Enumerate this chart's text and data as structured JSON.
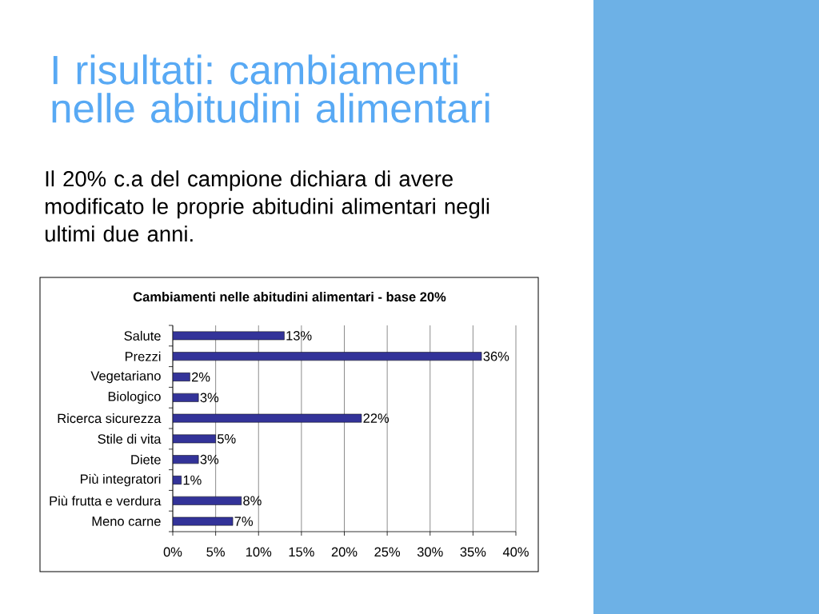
{
  "chart_data": {
    "type": "bar",
    "orientation": "horizontal",
    "title": "I risultati: cambiamenti nelle abitudini alimentari",
    "subtitle": "Il 20% c.a del campione dichiara di avere modificato le proprie abitudini alimentari negli ultimi due anni.",
    "annotations": [
      "Cambiamenti nelle abitudini alimentari - base 20%"
    ],
    "categories": [
      "Salute",
      "Prezzi",
      "Vegetariano",
      "Biologico",
      "Ricerca sicurezza",
      "Stile di vita",
      "Diete",
      "Più integratori",
      "Più frutta e verdura",
      "Meno carne"
    ],
    "values": [
      13,
      36,
      2,
      3,
      22,
      5,
      3,
      1,
      8,
      7
    ],
    "value_labels": [
      "13%",
      "36%",
      "2%",
      "3%",
      "22%",
      "5%",
      "3%",
      "1%",
      "8%",
      "7%"
    ],
    "color": "#333399",
    "xlim": [
      0,
      40
    ],
    "xticks": [
      {
        "value": 0,
        "label": "0%"
      },
      {
        "value": 5,
        "label": "5%"
      },
      {
        "value": 10,
        "label": "10%"
      },
      {
        "value": 15,
        "label": "15%"
      },
      {
        "value": 20,
        "label": "20%"
      },
      {
        "value": 25,
        "label": "25%"
      },
      {
        "value": 30,
        "label": "30%"
      },
      {
        "value": 35,
        "label": "35%"
      },
      {
        "value": 40,
        "label": "40%"
      }
    ],
    "grid": "x"
  }
}
